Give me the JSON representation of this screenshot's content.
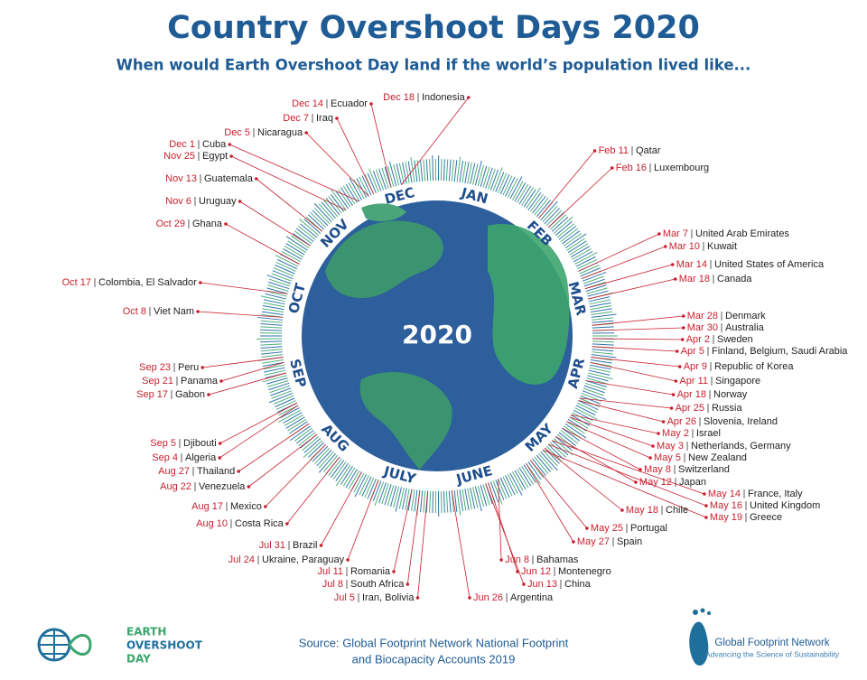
{
  "title": "Country Overshoot Days 2020",
  "subtitle": "When would Earth Overshoot Day land if the world’s population lived like...",
  "center_label": "2020",
  "months": [
    "JAN",
    "FEB",
    "MAR",
    "APR",
    "MAY",
    "JUNE",
    "JULY",
    "AUG",
    "SEP",
    "OCT",
    "NOV",
    "DEC"
  ],
  "entries": [
    {
      "date": "Dec 14",
      "country": "Ecuador"
    },
    {
      "date": "Dec 18",
      "country": "Indonesia"
    },
    {
      "date": "Dec 7",
      "country": "Iraq"
    },
    {
      "date": "Dec 5",
      "country": "Nicaragua"
    },
    {
      "date": "Dec 1",
      "country": "Cuba"
    },
    {
      "date": "Nov 25",
      "country": "Egypt"
    },
    {
      "date": "Nov 13",
      "country": "Guatemala"
    },
    {
      "date": "Nov 6",
      "country": "Uruguay"
    },
    {
      "date": "Oct 29",
      "country": "Ghana"
    },
    {
      "date": "Oct 17",
      "country": "Colombia, El Salvador"
    },
    {
      "date": "Oct 8",
      "country": "Viet Nam"
    },
    {
      "date": "Sep 23",
      "country": "Peru"
    },
    {
      "date": "Sep 21",
      "country": "Panama"
    },
    {
      "date": "Sep 17",
      "country": "Gabon"
    },
    {
      "date": "Sep 5",
      "country": "Djibouti"
    },
    {
      "date": "Sep 4",
      "country": "Algeria"
    },
    {
      "date": "Aug 27",
      "country": "Thailand"
    },
    {
      "date": "Aug 22",
      "country": "Venezuela"
    },
    {
      "date": "Aug 17",
      "country": "Mexico"
    },
    {
      "date": "Aug 10",
      "country": "Costa Rica"
    },
    {
      "date": "Jul 31",
      "country": "Brazil"
    },
    {
      "date": "Jul 24",
      "country": "Ukraine, Paraguay"
    },
    {
      "date": "Jul 11",
      "country": "Romania"
    },
    {
      "date": "Jul 8",
      "country": "South Africa"
    },
    {
      "date": "Jul 5",
      "country": "Iran, Bolivia"
    },
    {
      "date": "Jun 26",
      "country": "Argentina"
    },
    {
      "date": "Jun 8",
      "country": "Bahamas"
    },
    {
      "date": "Jun 12",
      "country": "Montenegro"
    },
    {
      "date": "Jun 13",
      "country": "China"
    },
    {
      "date": "May 25",
      "country": "Portugal"
    },
    {
      "date": "May 27",
      "country": "Spain"
    },
    {
      "date": "May 18",
      "country": "Chile"
    },
    {
      "date": "May 14",
      "country": "France, Italy"
    },
    {
      "date": "May 16",
      "country": "United Kingdom"
    },
    {
      "date": "May 19",
      "country": "Greece"
    },
    {
      "date": "May 12",
      "country": "Japan"
    },
    {
      "date": "May 8",
      "country": "Switzerland"
    },
    {
      "date": "May 5",
      "country": "New Zealand"
    },
    {
      "date": "May 3",
      "country": "Netherlands, Germany"
    },
    {
      "date": "May 2",
      "country": "Israel"
    },
    {
      "date": "Apr 26",
      "country": "Slovenia, Ireland"
    },
    {
      "date": "Apr 25",
      "country": "Russia"
    },
    {
      "date": "Apr 18",
      "country": "Norway"
    },
    {
      "date": "Apr 11",
      "country": "Singapore"
    },
    {
      "date": "Apr 9",
      "country": "Republic of Korea"
    },
    {
      "date": "Apr 5",
      "country": "Finland, Belgium, Saudi Arabia"
    },
    {
      "date": "Apr 2",
      "country": "Sweden"
    },
    {
      "date": "Mar 30",
      "country": "Australia"
    },
    {
      "date": "Mar 28",
      "country": "Denmark"
    },
    {
      "date": "Mar 18",
      "country": "Canada"
    },
    {
      "date": "Mar 14",
      "country": "United States of America"
    },
    {
      "date": "Mar 10",
      "country": "Kuwait"
    },
    {
      "date": "Mar 7",
      "country": "United Arab Emirates"
    },
    {
      "date": "Feb 16",
      "country": "Luxembourg"
    },
    {
      "date": "Feb 11",
      "country": "Qatar"
    }
  ],
  "footer": {
    "logo_lines": [
      "EARTH",
      "OVERSHOOT",
      "DAY"
    ],
    "source_lines": [
      "Source: Global Footprint Network National Footprint",
      "and Biocapacity Accounts 2019"
    ],
    "gfn_name": "Global Footprint Network",
    "gfn_tagline": "Advancing the Science of Sustainability"
  }
}
